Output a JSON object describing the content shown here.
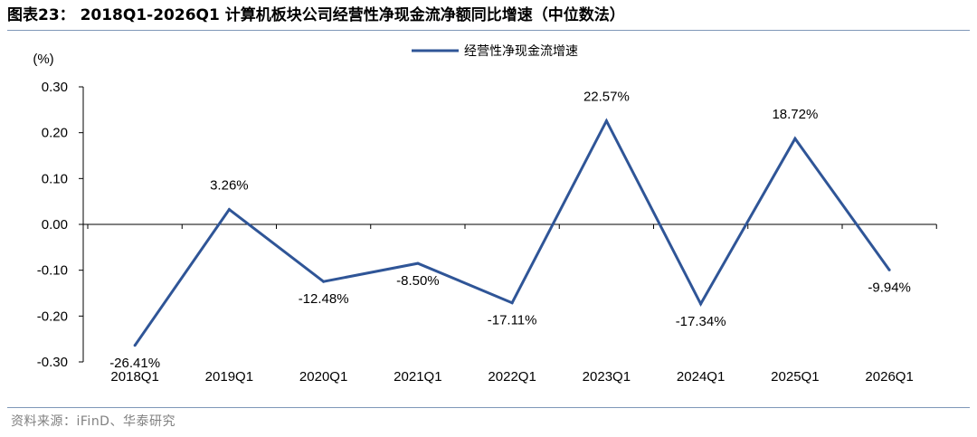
{
  "figure": {
    "title": "图表23： 2018Q1-2026Q1 计算机板块公司经营性净现金流净额同比增速（中位数法）",
    "source": "资料来源：iFinD、华泰研究"
  },
  "chart_data": {
    "type": "line",
    "ylabel": "(%)",
    "categories": [
      "2018Q1",
      "2019Q1",
      "2020Q1",
      "2021Q1",
      "2022Q1",
      "2023Q1",
      "2024Q1",
      "2025Q1",
      "2026Q1"
    ],
    "series": [
      {
        "name": "经营性净现金流增速",
        "color": "#2F5597",
        "values": [
          -0.2641,
          0.0326,
          -0.1248,
          -0.085,
          -0.1711,
          0.2257,
          -0.1734,
          0.1872,
          -0.0994
        ],
        "labels": [
          "-26.41%",
          "3.26%",
          "-12.48%",
          "-8.50%",
          "-17.11%",
          "22.57%",
          "-17.34%",
          "18.72%",
          "-9.94%"
        ]
      }
    ],
    "ylim": [
      -0.3,
      0.3
    ],
    "yticks": [
      "0.30",
      "0.20",
      "0.10",
      "0.00",
      "-0.10",
      "-0.20",
      "-0.30"
    ],
    "legend_position": "top-center",
    "grid": false
  }
}
